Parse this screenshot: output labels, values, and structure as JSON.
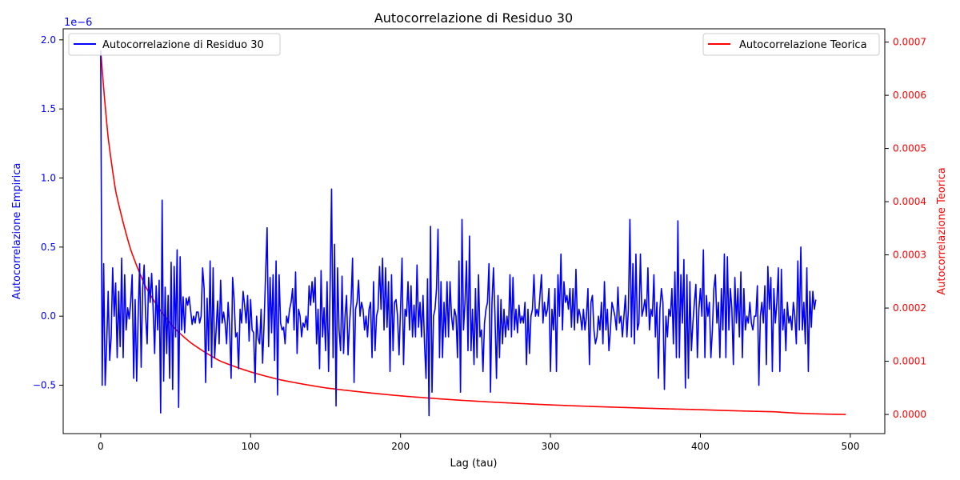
{
  "chart_data": {
    "type": "line",
    "title": "Autocorrelazione di Residuo 30",
    "xlabel": "Lag (tau)",
    "ylabel_left": "Autocorrelazione Empirica",
    "ylabel_right": "Autocorrelazione Teorica",
    "left_offset_text": "1e−6",
    "xlim": [
      -25,
      523
    ],
    "ylim_left": [
      -0.85,
      2.08
    ],
    "ylim_right": [
      -3.6e-05,
      0.000725
    ],
    "x_ticks": [
      0,
      100,
      200,
      300,
      400,
      500
    ],
    "x_tick_labels": [
      "0",
      "100",
      "200",
      "300",
      "400",
      "500"
    ],
    "y_left_ticks": [
      -0.5,
      0.0,
      0.5,
      1.0,
      1.5,
      2.0
    ],
    "y_left_tick_labels": [
      "−0.5",
      "0.0",
      "0.5",
      "1.0",
      "1.5",
      "2.0"
    ],
    "y_right_ticks": [
      0.0,
      0.0001,
      0.0002,
      0.0003,
      0.0004,
      0.0005,
      0.0006,
      0.0007
    ],
    "y_right_tick_labels": [
      "0.0000",
      "0.0001",
      "0.0002",
      "0.0003",
      "0.0004",
      "0.0005",
      "0.0006",
      "0.0007"
    ],
    "legend_left": {
      "placement": "upper left",
      "label": "Autocorrelazione di Residuo 30"
    },
    "legend_right": {
      "placement": "upper right",
      "label": "Autocorrelazione Teorica"
    },
    "grid": false,
    "series": [
      {
        "name": "Autocorrelazione di Residuo 30",
        "axis": "left",
        "color": "#0000ff",
        "x_start": 0,
        "x_step": 1,
        "values": [
          1.92,
          -0.5,
          0.38,
          -0.5,
          -0.2,
          0.18,
          -0.32,
          -0.15,
          0.35,
          0.0,
          0.24,
          -0.3,
          0.18,
          -0.22,
          0.42,
          -0.3,
          0.3,
          -0.1,
          0.06,
          -0.02,
          0.1,
          0.3,
          -0.45,
          0.12,
          -0.47,
          0.0,
          0.38,
          -0.37,
          0.2,
          0.37,
          0.0,
          -0.2,
          0.28,
          0.1,
          0.31,
          0.05,
          -0.27,
          0.22,
          -0.1,
          0.26,
          -0.7,
          0.84,
          -0.47,
          0.21,
          -0.27,
          0.15,
          -0.45,
          0.39,
          -0.53,
          0.36,
          -0.15,
          0.48,
          -0.66,
          0.43,
          -0.1,
          0.14,
          -0.12,
          0.13,
          0.08,
          0.14,
          0.04,
          -0.06,
          0.0,
          -0.05,
          0.03,
          0.03,
          -0.05,
          0.0,
          0.35,
          0.2,
          -0.48,
          0.13,
          -0.25,
          0.4,
          -0.37,
          0.35,
          -0.3,
          -0.1,
          0.11,
          -0.2,
          0.26,
          -0.05,
          0.03,
          -0.05,
          -0.2,
          0.1,
          -0.08,
          -0.45,
          0.28,
          0.12,
          -0.15,
          -0.12,
          -0.38,
          0.05,
          -0.05,
          0.18,
          0.08,
          -0.05,
          0.15,
          -0.18,
          0.12,
          -0.1,
          -0.12,
          -0.48,
          0.0,
          -0.16,
          -0.2,
          0.05,
          -0.34,
          -0.05,
          0.3,
          0.64,
          -0.22,
          0.28,
          -0.12,
          0.3,
          -0.32,
          0.4,
          -0.57,
          0.3,
          -0.05,
          -0.1,
          -0.08,
          -0.2,
          0.0,
          -0.05,
          0.05,
          0.1,
          0.2,
          -0.1,
          0.32,
          -0.27,
          0.05,
          0.0,
          -0.15,
          -0.05,
          -0.08,
          0.0,
          -0.1,
          0.22,
          0.08,
          0.25,
          0.1,
          0.28,
          -0.2,
          0.05,
          -0.38,
          0.33,
          -0.15,
          0.06,
          -0.25,
          0.25,
          -0.4,
          0.2,
          0.92,
          -0.3,
          0.52,
          -0.65,
          0.35,
          -0.1,
          -0.25,
          0.29,
          -0.27,
          0.0,
          0.15,
          -0.28,
          -0.05,
          0.1,
          0.42,
          -0.48,
          0.05,
          0.1,
          0.26,
          0.0,
          0.1,
          0.05,
          -0.1,
          0.0,
          -0.15,
          0.05,
          0.1,
          -0.3,
          0.25,
          -0.25,
          0.0,
          0.05,
          0.36,
          0.05,
          0.42,
          -0.1,
          0.35,
          -0.08,
          0.25,
          -0.4,
          0.3,
          -0.25,
          0.1,
          0.12,
          0.0,
          -0.28,
          0.05,
          0.42,
          -0.35,
          0.05,
          0.0,
          0.25,
          -0.1,
          0.22,
          -0.15,
          0.08,
          -0.15,
          0.37,
          -0.08,
          0.1,
          -0.15,
          0.15,
          -0.2,
          -0.45,
          0.27,
          -0.72,
          0.65,
          -0.55,
          0.0,
          0.05,
          0.2,
          0.63,
          -0.3,
          0.25,
          -0.3,
          0.1,
          -0.15,
          0.25,
          -0.15,
          0.25,
          0.0,
          -0.1,
          0.05,
          0.0,
          -0.3,
          0.4,
          -0.55,
          0.7,
          -0.1,
          0.1,
          0.4,
          -0.25,
          0.58,
          -0.25,
          0.05,
          -0.35,
          0.2,
          -0.3,
          0.3,
          -0.15,
          -0.1,
          -0.4,
          -0.05,
          0.05,
          0.1,
          0.38,
          -0.55,
          0.1,
          0.35,
          0.0,
          -0.45,
          0.15,
          -0.3,
          0.12,
          -0.2,
          0.05,
          -0.15,
          0.0,
          -0.1,
          0.3,
          -0.15,
          0.28,
          -0.1,
          0.05,
          -0.12,
          0.08,
          -0.05,
          0.0,
          -0.05,
          0.1,
          -0.35,
          0.05,
          -0.27,
          0.0,
          0.05,
          0.3,
          0.0,
          0.05,
          0.0,
          0.15,
          0.3,
          -0.05,
          0.1,
          0.0,
          0.05,
          0.2,
          -0.4,
          0.05,
          -0.1,
          0.2,
          -0.4,
          0.3,
          0.0,
          0.45,
          -0.1,
          0.25,
          0.1,
          0.15,
          0.05,
          0.2,
          -0.08,
          0.2,
          -0.1,
          0.34,
          -0.05,
          0.05,
          0.0,
          -0.1,
          0.05,
          -0.1,
          0.0,
          0.2,
          -0.35,
          0.1,
          0.15,
          -0.1,
          -0.2,
          -0.15,
          0.0,
          -0.1,
          0.1,
          -0.2,
          0.25,
          -0.1,
          0.05,
          -0.25,
          -0.1,
          0.1,
          0.05,
          0.0,
          -0.1,
          0.21,
          -0.05,
          0.0,
          -0.15,
          0.0,
          0.15,
          -0.15,
          0.05,
          0.7,
          -0.15,
          0.38,
          -0.2,
          0.45,
          -0.1,
          -0.05,
          0.45,
          0.0,
          0.05,
          0.12,
          0.0,
          0.35,
          -0.1,
          0.05,
          0.0,
          0.3,
          -0.15,
          0.1,
          -0.45,
          0.05,
          0.2,
          0.1,
          -0.53,
          0.0,
          -0.15,
          0.05,
          0.0,
          0.2,
          -0.2,
          0.32,
          -0.3,
          0.69,
          -0.3,
          0.3,
          -0.05,
          0.41,
          -0.52,
          0.3,
          -0.45,
          0.25,
          -0.25,
          -0.05,
          0.1,
          0.23,
          -0.3,
          0.05,
          0.2,
          0.0,
          0.48,
          -0.3,
          0.15,
          0.0,
          0.1,
          -0.3,
          -0.1,
          0.2,
          0.3,
          -0.05,
          0.1,
          -0.3,
          0.2,
          -0.1,
          0.45,
          -0.3,
          0.43,
          -0.1,
          0.2,
          0.05,
          -0.35,
          0.28,
          -0.05,
          0.2,
          -0.15,
          0.32,
          -0.3,
          0.2,
          -0.1,
          0.0,
          -0.05,
          0.1,
          -0.05,
          -0.1,
          0.0,
          0.0,
          0.22,
          -0.5,
          0.0,
          0.1,
          -0.05,
          0.22,
          -0.35,
          0.36,
          0.05,
          0.28,
          -0.4,
          0.2,
          -0.05,
          0.1,
          0.35,
          -0.4,
          0.34,
          -0.1,
          0.05,
          -0.25,
          0.1,
          -0.05,
          0.0,
          -0.1,
          0.1,
          0.0,
          -0.2,
          0.4,
          -0.1,
          0.5,
          -0.1,
          0.1,
          -0.2,
          0.35,
          -0.4,
          0.18,
          -0.08,
          0.18,
          0.05,
          0.12
        ]
      },
      {
        "name": "Autocorrelazione Teorica",
        "axis": "right",
        "color": "#ff0000",
        "shape": "theoretical decay",
        "x_range": [
          0,
          497
        ],
        "points": [
          [
            0,
            0.000685
          ],
          [
            5,
            0.00052
          ],
          [
            10,
            0.00042
          ],
          [
            20,
            0.00031
          ],
          [
            30,
            0.00024
          ],
          [
            40,
            0.000195
          ],
          [
            50,
            0.00016
          ],
          [
            60,
            0.000135
          ],
          [
            80,
            0.0001
          ],
          [
            100,
            8e-05
          ],
          [
            120,
            6.5e-05
          ],
          [
            150,
            5e-05
          ],
          [
            200,
            3.5e-05
          ],
          [
            250,
            2.5e-05
          ],
          [
            300,
            1.8e-05
          ],
          [
            350,
            1.3e-05
          ],
          [
            400,
            9e-06
          ],
          [
            450,
            5e-06
          ],
          [
            497,
            0.0
          ]
        ]
      }
    ]
  }
}
